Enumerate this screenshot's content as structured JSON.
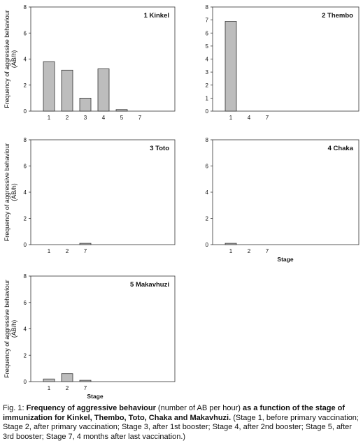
{
  "chart_data": [
    {
      "type": "bar",
      "title": "1  Kinkel",
      "ylabel": "Frequency of aggressive behaviour",
      "ylabel_unit": "(AB/h)",
      "xlabel": "",
      "ylim": [
        0,
        8
      ],
      "yticks": [
        "0",
        "2",
        "4",
        "6",
        "8"
      ],
      "categories": [
        "1",
        "2",
        "3",
        "4",
        "5",
        "7"
      ],
      "values": [
        3.8,
        3.15,
        1.0,
        3.25,
        0.12,
        0
      ],
      "bar_color": "#bdbdbd"
    },
    {
      "type": "bar",
      "title": "2  Thembo",
      "ylabel": "",
      "xlabel": "",
      "ylim": [
        0,
        8
      ],
      "yticks": [
        "0",
        "1",
        "2",
        "3",
        "4",
        "5",
        "6",
        "7",
        "8"
      ],
      "categories": [
        "1",
        "4",
        "7"
      ],
      "values": [
        6.9,
        0,
        0
      ],
      "bar_color": "#bdbdbd"
    },
    {
      "type": "bar",
      "title": "3  Toto",
      "ylabel": "Frequency of aggressive behaviour",
      "ylabel_unit": "(AB/h)",
      "xlabel": "",
      "ylim": [
        0,
        8
      ],
      "yticks": [
        "0",
        "2",
        "4",
        "6",
        "8"
      ],
      "categories": [
        "1",
        "2",
        "7"
      ],
      "values": [
        0,
        0,
        0.1
      ],
      "bar_color": "#bdbdbd"
    },
    {
      "type": "bar",
      "title": "4  Chaka",
      "ylabel": "",
      "xlabel": "Stage",
      "ylim": [
        0,
        8
      ],
      "yticks": [
        "0",
        "2",
        "4",
        "6",
        "8"
      ],
      "categories": [
        "1",
        "2",
        "7"
      ],
      "values": [
        0.1,
        0,
        0
      ],
      "bar_color": "#bdbdbd"
    },
    {
      "type": "bar",
      "title": "5  Makavhuzi",
      "ylabel": "Frequency of aggressive behaviour",
      "ylabel_unit": "(AB/h)",
      "xlabel": "Stage",
      "ylim": [
        0,
        8
      ],
      "yticks": [
        "0",
        "2",
        "4",
        "6",
        "8"
      ],
      "categories": [
        "1",
        "2",
        "7"
      ],
      "values": [
        0.2,
        0.6,
        0.1
      ],
      "bar_color": "#bdbdbd"
    }
  ],
  "caption": {
    "label": "Fig. 1: ",
    "bold1": "Frequency of aggressive behaviour",
    "text1": " (number of AB per hour) ",
    "bold2": "as a function of the stage of immunization for Kinkel, Thembo, Toto, Chaka and Makavhuzi.",
    "text2": " (Stage 1, before primary vaccination; Stage 2, after primary vaccination; Stage 3, after 1st booster; Stage 4, after 2nd booster; Stage 5, after 3rd booster; Stage 7, 4 months after last vaccination.)"
  }
}
